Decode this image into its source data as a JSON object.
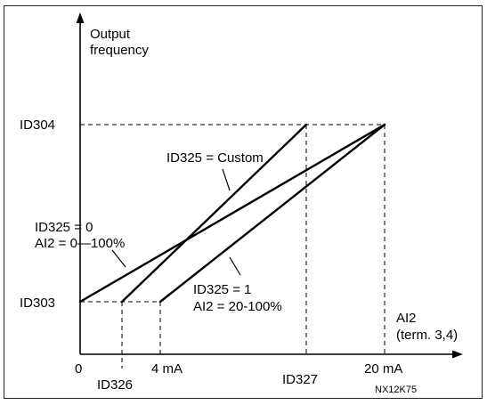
{
  "axes": {
    "y_title_line1": "Output",
    "y_title_line2": "frequency",
    "x_title_line1": "AI2",
    "x_title_line2": "(term. 3,4)"
  },
  "y_ticks": {
    "upper": "ID304",
    "lower": "ID303"
  },
  "x_ticks": {
    "zero": "0",
    "id326": "ID326",
    "four_ma": "4 mA",
    "id327": "ID327",
    "twenty_ma": "20 mA"
  },
  "curve_labels": {
    "custom": "ID325 = Custom",
    "zero_line1": "ID325 = 0",
    "zero_line2": "AI2 = 0—100%",
    "one_line1": "ID325 = 1",
    "one_line2": "AI2 = 20-100%"
  },
  "figure_code": "NX12K75"
}
